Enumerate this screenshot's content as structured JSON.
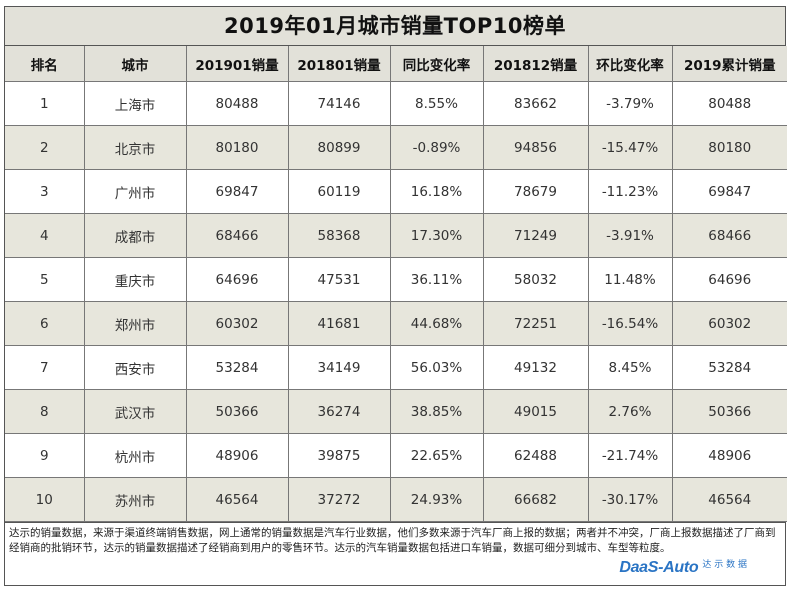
{
  "title": "2019年01月城市销量TOP10榜单",
  "columns": [
    "排名",
    "城市",
    "201901销量",
    "201801销量",
    "同比变化率",
    "201812销量",
    "环比变化率",
    "2019累计销量"
  ],
  "rows": [
    [
      "1",
      "上海市",
      "80488",
      "74146",
      "8.55%",
      "83662",
      "-3.79%",
      "80488"
    ],
    [
      "2",
      "北京市",
      "80180",
      "80899",
      "-0.89%",
      "94856",
      "-15.47%",
      "80180"
    ],
    [
      "3",
      "广州市",
      "69847",
      "60119",
      "16.18%",
      "78679",
      "-11.23%",
      "69847"
    ],
    [
      "4",
      "成都市",
      "68466",
      "58368",
      "17.30%",
      "71249",
      "-3.91%",
      "68466"
    ],
    [
      "5",
      "重庆市",
      "64696",
      "47531",
      "36.11%",
      "58032",
      "11.48%",
      "64696"
    ],
    [
      "6",
      "郑州市",
      "60302",
      "41681",
      "44.68%",
      "72251",
      "-16.54%",
      "60302"
    ],
    [
      "7",
      "西安市",
      "53284",
      "34149",
      "56.03%",
      "49132",
      "8.45%",
      "53284"
    ],
    [
      "8",
      "武汉市",
      "50366",
      "36274",
      "38.85%",
      "49015",
      "2.76%",
      "50366"
    ],
    [
      "9",
      "杭州市",
      "48906",
      "39875",
      "22.65%",
      "62488",
      "-21.74%",
      "48906"
    ],
    [
      "10",
      "苏州市",
      "46564",
      "37272",
      "24.93%",
      "66682",
      "-30.17%",
      "46564"
    ]
  ],
  "footer": {
    "note": "达示的销量数据，来源于渠道终端销售数据，网上通常的销量数据是汽车行业数据，他们多数来源于汽车厂商上报的数据；两者并不冲突，厂商上报数据描述了厂商到经销商的批销环节，达示的销量数据描述了经销商到用户的零售环节。达示的汽车销量数据包括进口车销量，数据可细分到城市、车型等粒度。",
    "logo_main": "DaaS-Auto",
    "logo_sub": "达 示 数 据"
  },
  "colors": {
    "header_bg": "#e2e1d9",
    "stripe_bg": "#e7e6dc",
    "logo": "#2a74c4"
  }
}
